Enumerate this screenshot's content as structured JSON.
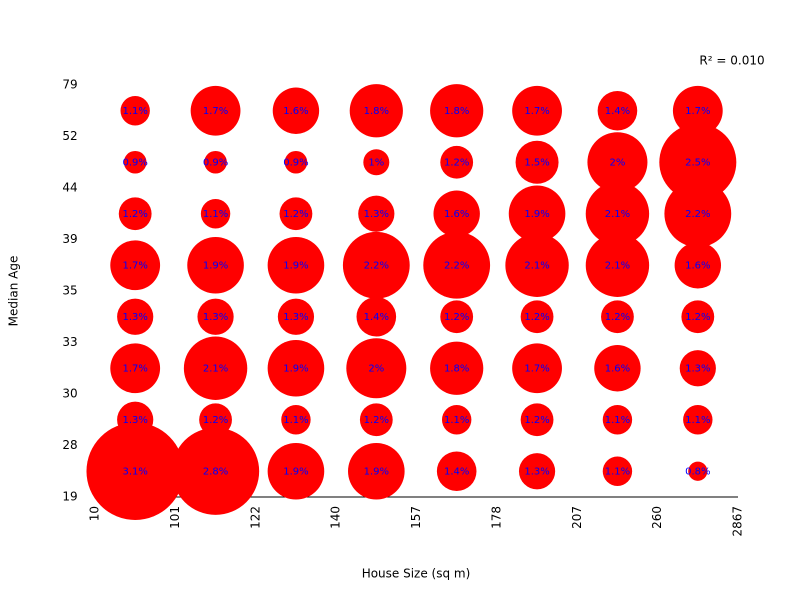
{
  "chart_data": {
    "type": "bubble",
    "xlabel": "House Size (sq m)",
    "ylabel": "Median Age",
    "annotation": "R² = 0.010",
    "xticks": [
      10,
      101,
      122,
      140,
      157,
      178,
      207,
      260,
      2867
    ],
    "yticks": [
      19,
      28,
      30,
      33,
      35,
      39,
      44,
      52,
      79
    ],
    "color": "#ff0000",
    "label_color": "#0000ff",
    "values": [
      [
        3.1,
        2.8,
        1.9,
        1.9,
        1.4,
        1.3,
        1.1,
        0.8
      ],
      [
        1.3,
        1.2,
        1.1,
        1.2,
        1.1,
        1.2,
        1.1,
        1.1
      ],
      [
        1.7,
        2.1,
        1.9,
        2,
        1.8,
        1.7,
        1.6,
        1.3
      ],
      [
        1.3,
        1.3,
        1.3,
        1.4,
        1.2,
        1.2,
        1.2,
        1.2
      ],
      [
        1.7,
        1.9,
        1.9,
        2.2,
        2.2,
        2.1,
        2.1,
        1.6
      ],
      [
        1.2,
        1.1,
        1.2,
        1.3,
        1.6,
        1.9,
        2.1,
        2.2
      ],
      [
        0.9,
        0.9,
        0.9,
        1,
        1.2,
        1.5,
        2,
        2.5
      ],
      [
        1.1,
        1.7,
        1.6,
        1.8,
        1.8,
        1.7,
        1.4,
        1.7
      ]
    ],
    "value_labels": [
      [
        "3.1%",
        "2.8%",
        "1.9%",
        "1.9%",
        "1.4%",
        "1.3%",
        "1.1%",
        "0.8%"
      ],
      [
        "1.3%",
        "1.2%",
        "1.1%",
        "1.2%",
        "1.1%",
        "1.2%",
        "1.1%",
        "1.1%"
      ],
      [
        "1.7%",
        "2.1%",
        "1.9%",
        "2%",
        "1.8%",
        "1.7%",
        "1.6%",
        "1.3%"
      ],
      [
        "1.3%",
        "1.3%",
        "1.3%",
        "1.4%",
        "1.2%",
        "1.2%",
        "1.2%",
        "1.2%"
      ],
      [
        "1.7%",
        "1.9%",
        "1.9%",
        "2.2%",
        "2.2%",
        "2.1%",
        "2.1%",
        "1.6%"
      ],
      [
        "1.2%",
        "1.1%",
        "1.2%",
        "1.3%",
        "1.6%",
        "1.9%",
        "2.1%",
        "2.2%"
      ],
      [
        "0.9%",
        "0.9%",
        "0.9%",
        "1%",
        "1.2%",
        "1.5%",
        "2%",
        "2.5%"
      ],
      [
        "1.1%",
        "1.7%",
        "1.6%",
        "1.8%",
        "1.8%",
        "1.7%",
        "1.4%",
        "1.7%"
      ]
    ]
  }
}
